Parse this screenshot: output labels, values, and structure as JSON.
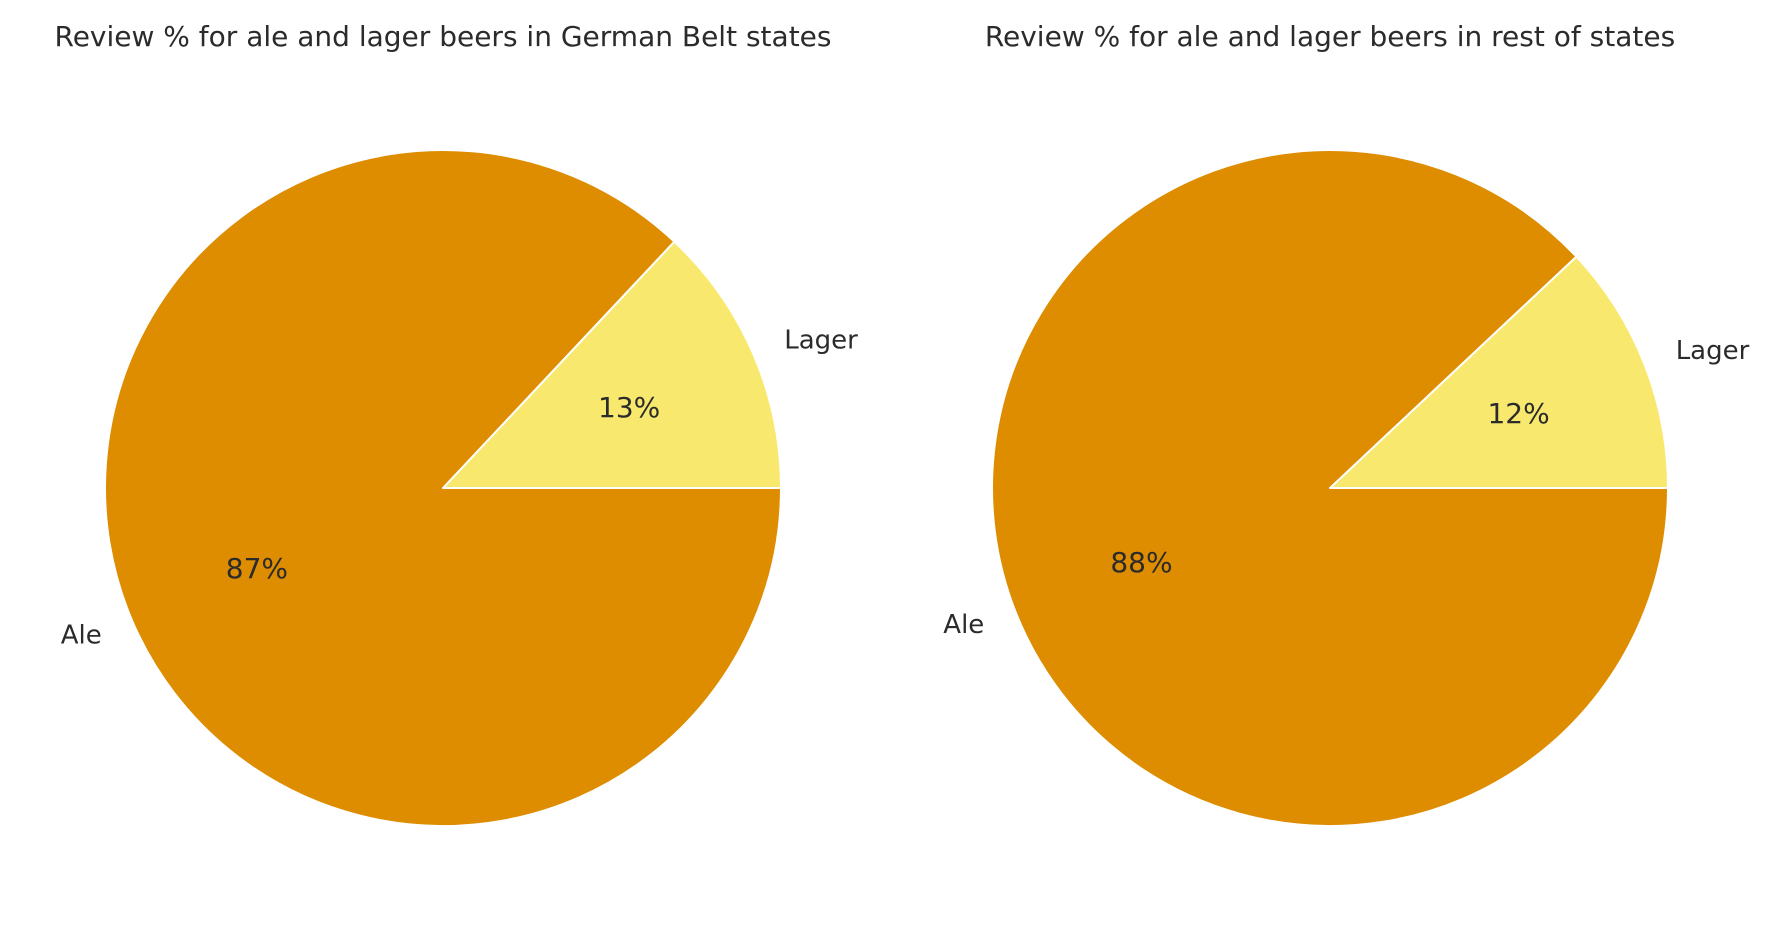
{
  "colors": {
    "ale": "#de8c00",
    "lager": "#f8e96e",
    "edge": "#ffffff",
    "text": "#2b2b2b"
  },
  "chart_data": [
    {
      "type": "pie",
      "title": "Review % for ale and lager beers in German Belt states",
      "start_angle_deg": 0,
      "direction": "counterclockwise",
      "slices": [
        {
          "name": "Lager",
          "label": "Lager",
          "value": 13,
          "value_label": "13%",
          "color": "#f8e96e"
        },
        {
          "name": "Ale",
          "label": "Ale",
          "value": 87,
          "value_label": "87%",
          "color": "#de8c00"
        }
      ]
    },
    {
      "type": "pie",
      "title": "Review % for ale and lager beers in rest of states",
      "start_angle_deg": 0,
      "direction": "counterclockwise",
      "slices": [
        {
          "name": "Lager",
          "label": "Lager",
          "value": 12,
          "value_label": "12%",
          "color": "#f8e96e"
        },
        {
          "name": "Ale",
          "label": "Ale",
          "value": 88,
          "value_label": "88%",
          "color": "#de8c00"
        }
      ]
    }
  ]
}
